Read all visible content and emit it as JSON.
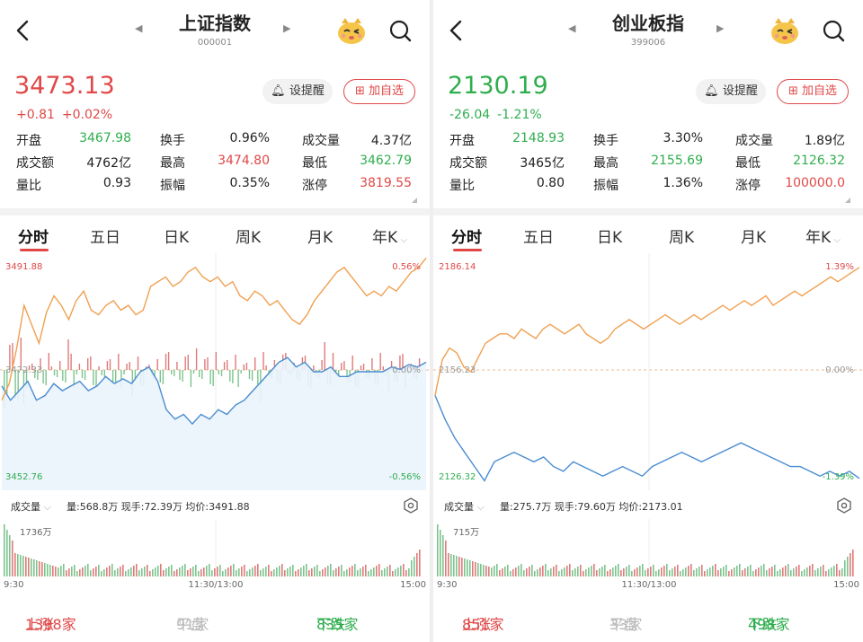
{
  "panels": [
    {
      "title": "上证指数",
      "code": "000001",
      "price": "3473.13",
      "change": "+0.81",
      "change_pct": "+0.02%",
      "alert_label": "设提醒",
      "fav_label": "加自选",
      "stats": [
        [
          {
            "label": "开盘",
            "value": "3467.98",
            "color": "green"
          },
          {
            "label": "换手",
            "value": "0.96%",
            "color": ""
          },
          {
            "label": "成交量",
            "value": "4.37亿",
            "color": ""
          }
        ],
        [
          {
            "label": "成交额",
            "value": "4762亿",
            "color": ""
          },
          {
            "label": "最高",
            "value": "3474.80",
            "color": "red"
          },
          {
            "label": "最低",
            "value": "3462.79",
            "color": "green"
          }
        ],
        [
          {
            "label": "量比",
            "value": "0.93",
            "color": ""
          },
          {
            "label": "振幅",
            "value": "0.35%",
            "color": ""
          },
          {
            "label": "涨停",
            "value": "3819.55",
            "color": "red"
          }
        ]
      ],
      "tabs": [
        "分时",
        "五日",
        "日K",
        "周K",
        "月K",
        "年K"
      ],
      "chart": {
        "top_left": "3491.88",
        "top_right": "0.56%",
        "mid_left": "3472.33",
        "mid_right": "0.00%",
        "bottom_left": "3452.76",
        "bottom_right": "-0.56%"
      },
      "volume": {
        "selector": "成交量",
        "info": "量:568.8万  现手:72.39万  均价:3491.88",
        "max_label": "1736万",
        "time_start": "9:30",
        "time_mid": "11:30/13:00",
        "time_end": "15:00"
      },
      "breadth": {
        "up_label": "上涨",
        "up_value": "1398家",
        "flat_label": "平盘",
        "flat_value": "91家",
        "down_label": "下跌",
        "down_value": "835家"
      }
    },
    {
      "title": "创业板指",
      "code": "399006",
      "price": "2130.19",
      "change": "-26.04",
      "change_pct": "-1.21%",
      "alert_label": "设提醒",
      "fav_label": "加自选",
      "stats": [
        [
          {
            "label": "开盘",
            "value": "2148.93",
            "color": "green"
          },
          {
            "label": "换手",
            "value": "3.30%",
            "color": ""
          },
          {
            "label": "成交量",
            "value": "1.89亿",
            "color": ""
          }
        ],
        [
          {
            "label": "成交额",
            "value": "3465亿",
            "color": ""
          },
          {
            "label": "最高",
            "value": "2155.69",
            "color": "green"
          },
          {
            "label": "最低",
            "value": "2126.32",
            "color": "green"
          }
        ],
        [
          {
            "label": "量比",
            "value": "0.80",
            "color": ""
          },
          {
            "label": "振幅",
            "value": "1.36%",
            "color": ""
          },
          {
            "label": "涨停",
            "value": "100000.0",
            "color": "red"
          }
        ]
      ],
      "tabs": [
        "分时",
        "五日",
        "日K",
        "周K",
        "月K",
        "年K"
      ],
      "chart": {
        "top_left": "2186.14",
        "top_right": "1.39%",
        "mid_left": "2156.23",
        "mid_right": "0.00%",
        "bottom_left": "2126.32",
        "bottom_right": "-1.39%"
      },
      "volume": {
        "selector": "成交量",
        "info": "量:275.7万  现手:79.60万  均价:2173.01",
        "max_label": "715万",
        "time_start": "9:30",
        "time_mid": "11:30/13:00",
        "time_end": "15:00"
      },
      "breadth": {
        "up_label": "上涨",
        "up_value": "851家",
        "flat_label": "平盘",
        "flat_value": "33家",
        "down_label": "下跌",
        "down_value": "498家"
      }
    }
  ],
  "colors": {
    "up": "#e04848",
    "down": "#2fae4e",
    "price_line": "#f0a050",
    "avg_line": "#4a8cd0"
  },
  "icons": [
    "back-arrow-icon",
    "chevron-left-icon",
    "chevron-right-icon",
    "mascot-icon",
    "search-icon",
    "bell-icon",
    "plus-box-icon",
    "gear-icon",
    "chevron-down-icon"
  ]
}
